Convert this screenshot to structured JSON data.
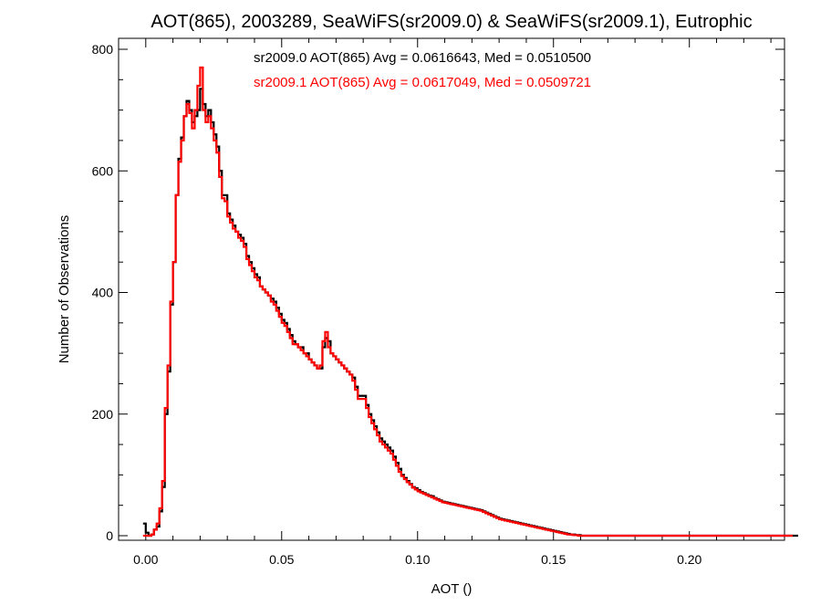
{
  "chart_data": {
    "type": "line",
    "title": "AOT(865), 2003289, SeaWiFS(sr2009.0) & SeaWiFS(sr2009.1), Eutrophic",
    "xlabel": "AOT ()",
    "ylabel": "Number of Observations",
    "xlim": [
      -0.01,
      0.235
    ],
    "ylim": [
      0,
      800
    ],
    "xticks": [
      0.0,
      0.05,
      0.1,
      0.15,
      0.2
    ],
    "xtick_labels": [
      "0.00",
      "0.05",
      "0.10",
      "0.15",
      "0.20"
    ],
    "yticks": [
      0,
      200,
      400,
      600,
      800
    ],
    "ytick_labels": [
      "0",
      "200",
      "400",
      "600",
      "800"
    ],
    "bin_width": 0.001,
    "x_start": -0.001,
    "grid": false,
    "legend_position": "top-center",
    "series": [
      {
        "name": "sr2009.0 AOT(865) Avg = 0.0616643, Med = 0.0510500",
        "color": "#000000",
        "values": [
          20,
          5,
          0,
          2,
          10,
          15,
          40,
          80,
          200,
          270,
          380,
          450,
          560,
          620,
          655,
          690,
          715,
          700,
          680,
          690,
          700,
          735,
          710,
          690,
          700,
          680,
          660,
          640,
          600,
          560,
          560,
          530,
          520,
          510,
          500,
          495,
          490,
          480,
          460,
          450,
          440,
          430,
          425,
          410,
          405,
          400,
          395,
          390,
          385,
          375,
          365,
          355,
          350,
          340,
          330,
          320,
          315,
          310,
          310,
          300,
          300,
          290,
          285,
          280,
          275,
          275,
          310,
          325,
          320,
          300,
          295,
          290,
          285,
          280,
          275,
          270,
          265,
          260,
          245,
          230,
          230,
          230,
          215,
          200,
          190,
          180,
          170,
          160,
          155,
          150,
          145,
          140,
          130,
          120,
          110,
          100,
          95,
          90,
          85,
          80,
          78,
          75,
          72,
          70,
          68,
          66,
          65,
          62,
          60,
          58,
          56,
          55,
          54,
          53,
          52,
          51,
          50,
          49,
          48,
          47,
          46,
          45,
          44,
          43,
          42,
          40,
          38,
          36,
          34,
          32,
          30,
          28,
          27,
          26,
          25,
          24,
          23,
          22,
          21,
          20,
          19,
          18,
          17,
          16,
          15,
          14,
          13,
          12,
          11,
          10,
          9,
          8,
          7,
          6,
          5,
          4,
          3,
          2,
          2,
          1,
          1,
          0,
          0,
          0,
          0,
          0,
          0,
          0,
          0,
          0,
          0,
          0,
          0,
          0,
          0,
          0,
          0,
          0,
          0,
          0,
          0,
          0,
          0,
          0,
          0,
          0,
          0,
          0,
          0,
          0,
          0,
          0,
          0,
          0,
          0,
          0,
          0,
          0,
          0,
          0,
          0,
          0,
          0,
          0,
          0,
          0,
          0,
          0,
          0,
          0,
          0,
          0,
          0,
          0,
          0,
          0,
          0,
          0,
          0,
          0,
          0,
          0,
          0,
          0,
          0,
          0,
          0,
          0,
          0,
          0,
          0,
          0,
          0,
          0,
          0,
          0,
          0,
          0,
          0,
          0,
          0
        ]
      },
      {
        "name": "sr2009.1 AOT(865) Avg = 0.0617049, Med = 0.0509721",
        "color": "#ff0000",
        "values": [
          0,
          0,
          0,
          2,
          10,
          20,
          45,
          90,
          210,
          280,
          385,
          450,
          560,
          615,
          650,
          690,
          710,
          695,
          670,
          700,
          740,
          770,
          700,
          680,
          690,
          670,
          650,
          630,
          590,
          555,
          550,
          525,
          515,
          505,
          500,
          490,
          485,
          475,
          455,
          445,
          435,
          425,
          420,
          410,
          405,
          400,
          395,
          385,
          380,
          370,
          360,
          350,
          345,
          335,
          325,
          315,
          315,
          310,
          305,
          300,
          295,
          290,
          285,
          280,
          275,
          280,
          320,
          335,
          310,
          300,
          295,
          290,
          285,
          280,
          275,
          270,
          265,
          255,
          240,
          225,
          225,
          225,
          210,
          195,
          185,
          175,
          165,
          155,
          150,
          145,
          140,
          135,
          125,
          115,
          105,
          98,
          93,
          88,
          84,
          79,
          76,
          73,
          71,
          69,
          67,
          65,
          63,
          61,
          59,
          57,
          55,
          54,
          53,
          52,
          51,
          50,
          49,
          48,
          47,
          46,
          45,
          44,
          43,
          42,
          41,
          39,
          37,
          35,
          33,
          31,
          29,
          27,
          26,
          25,
          24,
          23,
          22,
          21,
          20,
          19,
          18,
          17,
          16,
          15,
          14,
          13,
          12,
          11,
          10,
          9,
          8,
          7,
          6,
          5,
          4,
          3,
          2,
          2,
          1,
          1,
          0,
          0,
          0,
          0,
          0,
          0,
          0,
          0,
          0,
          0,
          0,
          0,
          0,
          0,
          0,
          0,
          0,
          0,
          0,
          0,
          0,
          0,
          0,
          0,
          0,
          0,
          0,
          0,
          0,
          0,
          0,
          0,
          0,
          0,
          0,
          0,
          0,
          0,
          0,
          0,
          0,
          0,
          0,
          0,
          0,
          0,
          0,
          0,
          0,
          0,
          0,
          0,
          0,
          0,
          0,
          0,
          0,
          0,
          0,
          0,
          0,
          0,
          0,
          0,
          0,
          0,
          0,
          0,
          0,
          0,
          0,
          0,
          0,
          0,
          0,
          0,
          0,
          0,
          0
        ]
      }
    ]
  }
}
